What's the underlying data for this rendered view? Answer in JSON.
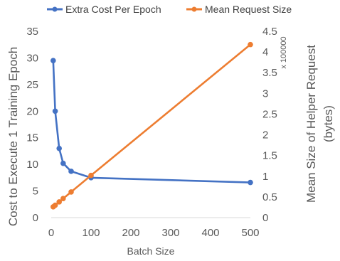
{
  "chart_data": {
    "type": "line",
    "xlabel": "Batch Size",
    "ylabel_left": "Cost to Execute 1 Training Epoch",
    "ylabel_right": "Mean Size of Helper Request (bytes)",
    "ylabel_right_lines": [
      "Mean Size of Helper Request",
      "(bytes)"
    ],
    "right_axis_multiplier": "x 100000",
    "x_ticks": [
      0,
      100,
      200,
      300,
      400,
      500
    ],
    "left_ticks": [
      0,
      5,
      10,
      15,
      20,
      25,
      30,
      35
    ],
    "right_ticks": [
      "0",
      "0.5",
      "1",
      "1.5",
      "2",
      "2.5",
      "3",
      "3.5",
      "4",
      "4.5"
    ],
    "xlim": [
      0,
      500
    ],
    "ylim_left": [
      0,
      35
    ],
    "ylim_right": [
      0,
      4.5
    ],
    "legend_position": "top",
    "series": [
      {
        "name": "Extra Cost Per Epoch",
        "axis": "left",
        "color": "#4472C4",
        "x": [
          5,
          10,
          20,
          30,
          50,
          100,
          500
        ],
        "y": [
          29.5,
          20.0,
          13.0,
          10.2,
          8.7,
          7.5,
          6.6
        ]
      },
      {
        "name": "Mean Request Size",
        "axis": "right",
        "color": "#ED7D31",
        "x": [
          5,
          10,
          20,
          30,
          50,
          100,
          500
        ],
        "y": [
          0.26,
          0.3,
          0.38,
          0.46,
          0.62,
          1.02,
          4.18
        ]
      }
    ]
  }
}
